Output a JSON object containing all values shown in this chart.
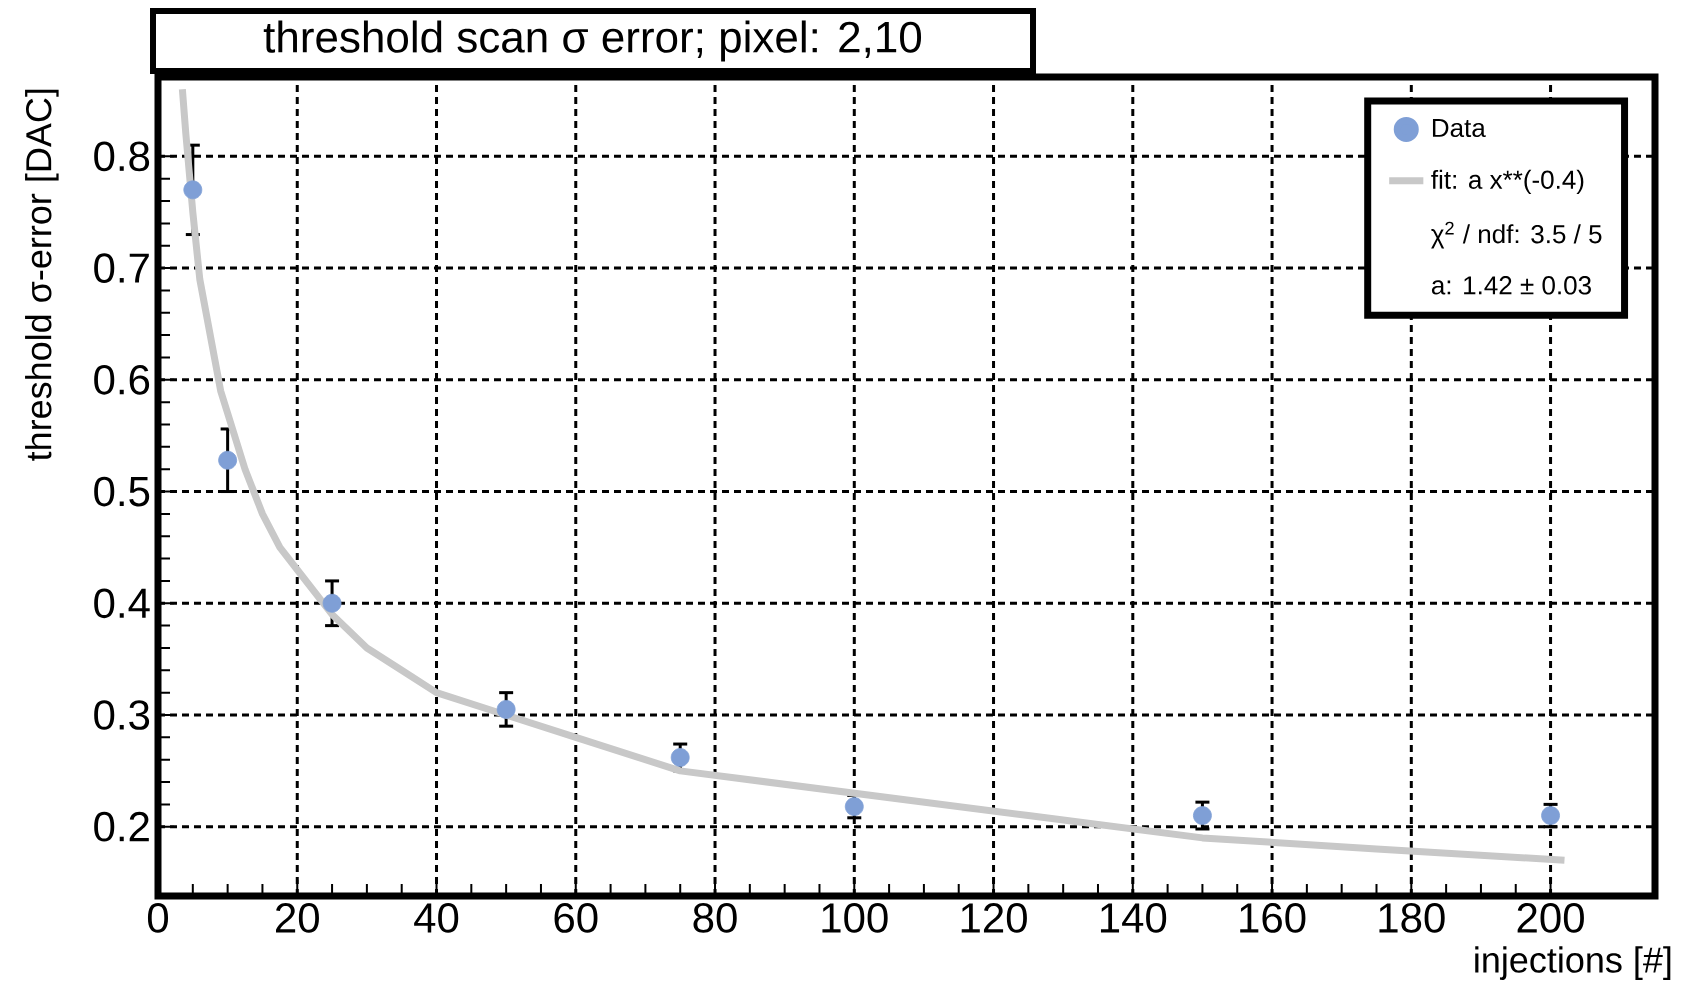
{
  "chart_data": {
    "type": "scatter",
    "title": "threshold scan σ error; pixel: 2,10",
    "xlabel": "injections [#]",
    "ylabel": "threshold σ-error [DAC]",
    "xlim": [
      0,
      215
    ],
    "ylim": [
      0.138,
      0.871
    ],
    "xticks": [
      0,
      20,
      40,
      60,
      80,
      100,
      120,
      140,
      160,
      180,
      200
    ],
    "yticks": [
      0.2,
      0.3,
      0.4,
      0.5,
      0.6,
      0.7,
      0.8
    ],
    "grid": true,
    "legend": "top right",
    "marker": "circle",
    "series": [
      {
        "name": "Data",
        "color": "#7f9fd6",
        "x": [
          5,
          10,
          25,
          50,
          75,
          100,
          150,
          200
        ],
        "values": [
          0.77,
          0.528,
          0.4,
          0.305,
          0.262,
          0.218,
          0.21,
          0.21
        ],
        "errors": [
          0.04,
          0.028,
          0.02,
          0.015,
          0.012,
          0.01,
          0.012,
          0.01
        ]
      },
      {
        "name": "fit: a x**(-0.4)",
        "type": "line",
        "color": "#c8c8c8",
        "line_style": "solid",
        "marker": "none",
        "x": [
          3.5,
          4,
          5,
          6,
          7.5,
          9,
          10,
          12.5,
          15,
          17.5,
          20,
          25,
          30,
          35,
          40,
          50,
          60,
          75,
          100,
          125,
          150,
          175,
          202
        ],
        "values": [
          0.86,
          0.82,
          0.75,
          0.69,
          0.64,
          0.59,
          0.57,
          0.52,
          0.48,
          0.45,
          0.43,
          0.39,
          0.36,
          0.34,
          0.32,
          0.3,
          0.28,
          0.25,
          0.23,
          0.21,
          0.19,
          0.18,
          0.17
        ]
      }
    ],
    "annotations": [
      "χ$^{2}$ / ndf:  3.5 /  5",
      "a: 1.42 ± 0.03"
    ]
  }
}
